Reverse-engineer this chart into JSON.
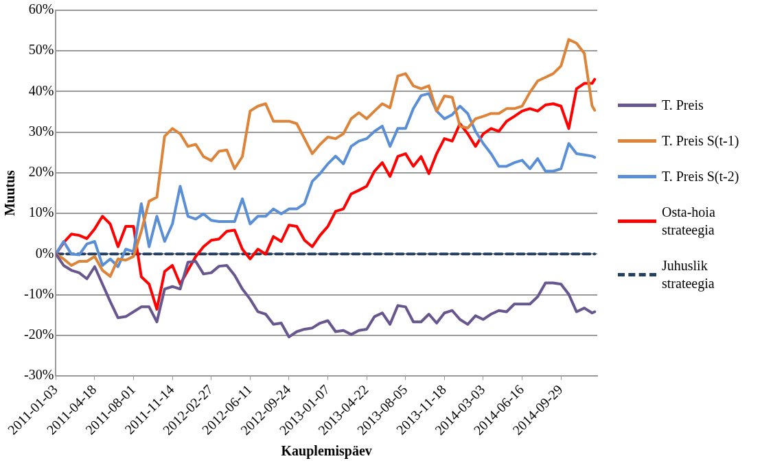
{
  "chart_data": {
    "type": "line",
    "xlabel": "Kauplemispäev",
    "ylabel": "Muutus",
    "x": [
      "2011-01-03",
      "2011-01-24",
      "2011-02-14",
      "2011-03-07",
      "2011-03-28",
      "2011-04-18",
      "2011-05-09",
      "2011-05-30",
      "2011-06-20",
      "2011-07-11",
      "2011-08-01",
      "2011-08-22",
      "2011-09-12",
      "2011-10-03",
      "2011-10-24",
      "2011-11-14",
      "2011-12-05",
      "2011-12-26",
      "2012-01-16",
      "2012-02-06",
      "2012-02-27",
      "2012-03-19",
      "2012-04-09",
      "2012-04-30",
      "2012-05-21",
      "2012-06-11",
      "2012-07-02",
      "2012-07-23",
      "2012-08-13",
      "2012-09-03",
      "2012-09-24",
      "2012-10-15",
      "2012-11-05",
      "2012-11-26",
      "2012-12-17",
      "2013-01-07",
      "2013-01-28",
      "2013-02-18",
      "2013-03-11",
      "2013-04-01",
      "2013-04-22",
      "2013-05-13",
      "2013-06-03",
      "2013-06-24",
      "2013-07-15",
      "2013-08-05",
      "2013-08-26",
      "2013-09-16",
      "2013-10-07",
      "2013-10-28",
      "2013-11-18",
      "2013-12-09",
      "2013-12-30",
      "2014-01-20",
      "2014-02-10",
      "2014-03-03",
      "2014-03-24",
      "2014-04-14",
      "2014-05-05",
      "2014-05-26",
      "2014-06-16",
      "2014-07-07",
      "2014-07-28",
      "2014-08-18",
      "2014-09-08",
      "2014-09-29",
      "2014-10-20",
      "2014-11-10",
      "2014-12-01",
      "2014-12-22",
      "2014-12-29"
    ],
    "series": [
      {
        "name": "T. Preis",
        "color": "#68578f",
        "values": [
          0,
          -2.8,
          -4,
          -4.6,
          -6.1,
          -3.1,
          -7.4,
          -11.7,
          -15.7,
          -15.4,
          -14.2,
          -13,
          -13,
          -16.7,
          -8.6,
          -8,
          -8.6,
          -2,
          -1.8,
          -4.9,
          -4.6,
          -3,
          -2.8,
          -5.2,
          -8.6,
          -11.1,
          -14.2,
          -14.8,
          -17.3,
          -17,
          -20.4,
          -19.1,
          -18.5,
          -18.2,
          -17,
          -16.4,
          -19.1,
          -18.8,
          -19.8,
          -18.8,
          -18.5,
          -15.4,
          -14.5,
          -17.3,
          -12.7,
          -13,
          -16.7,
          -16.7,
          -14.8,
          -17,
          -14.5,
          -13.9,
          -16.1,
          -17.3,
          -15.2,
          -16.1,
          -14.8,
          -13.9,
          -14.2,
          -12.3,
          -12.3,
          -12.3,
          -10.5,
          -7.1,
          -7.1,
          -7.4,
          -9.9,
          -14.2,
          -13.3,
          -14.5,
          -14.2
        ]
      },
      {
        "name": "T. Preis S(t-1)",
        "color": "#dc843a",
        "values": [
          0,
          -1.2,
          -2.8,
          -1.8,
          -1.8,
          -0.6,
          -4,
          -5.5,
          -1.2,
          -1.5,
          -0.6,
          5.6,
          13,
          14,
          29,
          30.9,
          29.6,
          26.5,
          27,
          24,
          23,
          25.3,
          25.6,
          21,
          24,
          35.2,
          36.4,
          37,
          32.7,
          32.7,
          32.7,
          32.1,
          28.4,
          24.7,
          27,
          28.8,
          28.4,
          29.6,
          33.3,
          34.8,
          33.3,
          35.2,
          37,
          36,
          43.8,
          44.4,
          41.4,
          40.7,
          41.4,
          35.2,
          38.9,
          38.6,
          31.5,
          31,
          33.3,
          33.9,
          34.6,
          34.6,
          35.8,
          35.8,
          36.4,
          39.8,
          42.6,
          43.5,
          44.4,
          46.3,
          52.8,
          51.9,
          49.4,
          36.5,
          35.4
        ]
      },
      {
        "name": "T. Preis S(t-2)",
        "color": "#5a8fd5",
        "values": [
          0,
          3.1,
          0,
          -0.2,
          2.5,
          3.1,
          -2.8,
          -1.2,
          -3.1,
          1.2,
          0.6,
          12.4,
          1.8,
          9.3,
          3.1,
          7.4,
          16.7,
          9.3,
          8.6,
          9.9,
          8.3,
          8,
          8,
          8,
          13.6,
          7.4,
          9.3,
          9.3,
          11.1,
          9.9,
          11.1,
          11.1,
          12.4,
          17.9,
          19.8,
          22.2,
          24.1,
          22.2,
          26.5,
          27.8,
          28.4,
          30.2,
          31.5,
          26.5,
          30.9,
          30.9,
          35.8,
          39,
          39.5,
          35.2,
          33.3,
          34.3,
          36.4,
          34.6,
          30.2,
          27.2,
          24.7,
          21.6,
          21.6,
          22.5,
          23.1,
          21,
          23.5,
          20.4,
          20.4,
          21,
          27.2,
          24.7,
          24.4,
          24.1,
          23.8
        ]
      },
      {
        "name": "Osta-hoia strateegia",
        "color": "#ff0000",
        "values": [
          0,
          2.8,
          4.9,
          4.6,
          3.8,
          6.2,
          9.3,
          7.4,
          1.8,
          6.8,
          6.8,
          -5.6,
          -7.4,
          -13.6,
          -4.3,
          -2.8,
          -7.4,
          -4,
          -0.6,
          1.8,
          3.4,
          3.7,
          5.6,
          5.9,
          1.2,
          -1.2,
          1.2,
          0,
          4.3,
          3.1,
          7.1,
          6.8,
          3.4,
          1.8,
          4.6,
          6.8,
          10.5,
          11.1,
          14.8,
          15.7,
          16.7,
          20.4,
          22.5,
          19.1,
          24,
          24.7,
          21.6,
          24,
          19.8,
          24.7,
          28.4,
          27.8,
          32.1,
          29.6,
          26.5,
          29.6,
          30.9,
          30.2,
          32.7,
          33.9,
          35.2,
          35.8,
          35.2,
          36.7,
          37,
          36.4,
          30.9,
          40.7,
          42,
          42,
          43
        ]
      },
      {
        "name": "Juhuslik strateegia",
        "color": "#243f60",
        "line_style": "dashed",
        "x": [
          "2011-01-03",
          "2014-12-29"
        ],
        "values": [
          0,
          0
        ]
      }
    ],
    "xlim": [
      "2011-01-03",
      "2015-01-05"
    ],
    "xticks": [
      "2011-01-03",
      "2011-04-18",
      "2011-08-01",
      "2011-11-14",
      "2012-02-27",
      "2012-06-11",
      "2012-09-24",
      "2013-01-07",
      "2013-04-22",
      "2013-08-05",
      "2013-11-18",
      "2014-03-03",
      "2014-06-16",
      "2014-09-29"
    ],
    "ylim": [
      -30,
      60
    ],
    "yticks": [
      {
        "value": -30,
        "label": "-30%"
      },
      {
        "value": -20,
        "label": "-20%"
      },
      {
        "value": -10,
        "label": "-10%"
      },
      {
        "value": 0,
        "label": "0%"
      },
      {
        "value": 10,
        "label": "10%"
      },
      {
        "value": 20,
        "label": "20%"
      },
      {
        "value": 30,
        "label": "30%"
      },
      {
        "value": 40,
        "label": "40%"
      },
      {
        "value": 50,
        "label": "50%"
      },
      {
        "value": 60,
        "label": "60%"
      }
    ],
    "grid": "y",
    "legend": "right",
    "marker": "none",
    "line_style": "solid"
  }
}
